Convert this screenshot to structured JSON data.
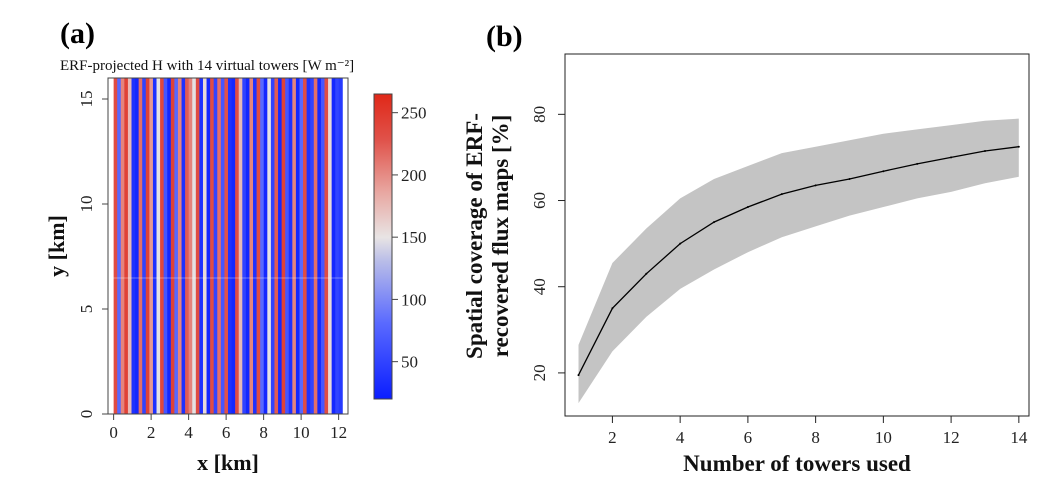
{
  "chart_data": [
    {
      "panel": "(a)",
      "type": "heatmap",
      "title": "ERF-projected H with 14 virtual towers [W m⁻²]",
      "xlabel": "x [km]",
      "ylabel": "y [km]",
      "xlim": [
        -0.3,
        12.5
      ],
      "ylim": [
        0,
        16
      ],
      "x_ticks": [
        "0",
        "2",
        "4",
        "6",
        "8",
        "10",
        "12"
      ],
      "y_ticks": [
        "0",
        "5",
        "10",
        "15"
      ],
      "colorbar": {
        "min": 20,
        "max": 265,
        "ticks": [
          "50",
          "100",
          "150",
          "200",
          "250"
        ],
        "colors": [
          "#0a1eff",
          "#5a6aff",
          "#b8bce8",
          "#e8e4e4",
          "#e8a6a0",
          "#e0524a",
          "#e02818"
        ]
      },
      "stripes": {
        "x_start": 0,
        "x_end": 12.2,
        "values": [
          230,
          60,
          200,
          240,
          170,
          30,
          25,
          210,
          40,
          240,
          190,
          30,
          140,
          235,
          50,
          25,
          240,
          60,
          200,
          30,
          220,
          200,
          140,
          230,
          30,
          150,
          25,
          230,
          40,
          210,
          50,
          225,
          30,
          25,
          230,
          170,
          40,
          25,
          200,
          30,
          230,
          60,
          25,
          140,
          40,
          220,
          25,
          240,
          50,
          30,
          200,
          25,
          60,
          230,
          30,
          40,
          210,
          25,
          50,
          230,
          150,
          25,
          40,
          35
        ]
      }
    },
    {
      "panel": "(b)",
      "type": "area",
      "title": "",
      "xlabel": "Number of towers used",
      "ylabel_lines": [
        "Spatial coverage of  ERF-",
        "recovered flux maps [%]"
      ],
      "xlim": [
        0.6,
        14.3
      ],
      "ylim": [
        10,
        94
      ],
      "x_ticks": [
        2,
        4,
        6,
        8,
        10,
        12,
        14
      ],
      "y_ticks": [
        20,
        40,
        60,
        80
      ],
      "x": [
        1,
        2,
        3,
        4,
        5,
        6,
        7,
        8,
        9,
        10,
        11,
        12,
        13,
        14
      ],
      "mean": [
        19.5,
        35,
        43,
        50,
        55,
        58.5,
        61.5,
        63.5,
        65,
        66.8,
        68.5,
        70,
        71.5,
        72.5
      ],
      "lower": [
        13,
        25,
        33,
        39.5,
        44,
        48,
        51.5,
        54,
        56.5,
        58.5,
        60.5,
        62,
        64,
        65.5
      ],
      "upper": [
        26.5,
        45.5,
        53.5,
        60.5,
        65,
        68,
        71,
        72.5,
        74,
        75.5,
        76.5,
        77.5,
        78.5,
        79
      ],
      "grid": false,
      "band_color": "#c4c4c4",
      "line_color": "#000000"
    }
  ]
}
